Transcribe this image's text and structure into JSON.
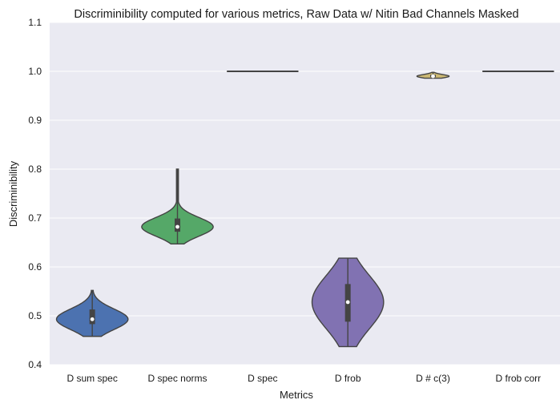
{
  "chart_data": {
    "type": "violin",
    "title": "Discriminibility computed for various metrics, Raw Data w/ Nitin Bad Channels Masked",
    "xlabel": "Metrics",
    "ylabel": "Discriminibility",
    "ylim": [
      0.4,
      1.1
    ],
    "yticks": [
      "0.4",
      "0.5",
      "0.6",
      "0.7",
      "0.8",
      "0.9",
      "1.0",
      "1.1"
    ],
    "grid": true,
    "categories": [
      "D sum spec",
      "D spec norms",
      "D spec",
      "D frob",
      "D # c(3)",
      "D frob corr"
    ],
    "series": [
      {
        "category": "D sum spec",
        "min": 0.458,
        "max": 0.552,
        "median": 0.493,
        "q1": 0.483,
        "q3": 0.513,
        "color": "#4c72b0"
      },
      {
        "category": "D spec norms",
        "min": 0.647,
        "max": 0.8,
        "median": 0.682,
        "q1": 0.672,
        "q3": 0.699,
        "color": "#55a868"
      },
      {
        "category": "D spec",
        "min": 1.0,
        "max": 1.0,
        "median": 1.0,
        "q1": 1.0,
        "q3": 1.0,
        "color": "#c44e52"
      },
      {
        "category": "D frob",
        "min": 0.437,
        "max": 0.618,
        "median": 0.528,
        "q1": 0.488,
        "q3": 0.565,
        "color": "#8172b2"
      },
      {
        "category": "D # c(3)",
        "min": 0.986,
        "max": 0.998,
        "median": 0.99,
        "q1": 0.988,
        "q3": 0.993,
        "color": "#ccb974"
      },
      {
        "category": "D frob corr",
        "min": 1.0,
        "max": 1.0,
        "median": 1.0,
        "q1": 1.0,
        "q3": 1.0,
        "color": "#64b5cd"
      }
    ]
  }
}
